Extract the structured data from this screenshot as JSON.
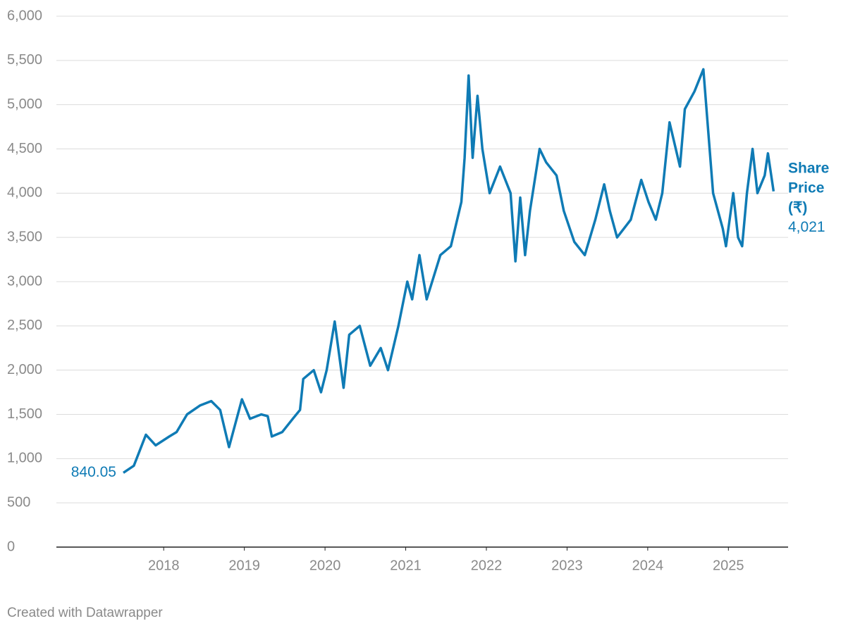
{
  "chart_data": {
    "type": "line",
    "x": [
      2017.5,
      2017.63,
      2017.78,
      2017.9,
      2018.07,
      2018.16,
      2018.29,
      2018.45,
      2018.59,
      2018.7,
      2018.81,
      2018.97,
      2019.07,
      2019.21,
      2019.29,
      2019.34,
      2019.47,
      2019.6,
      2019.69,
      2019.73,
      2019.86,
      2019.95,
      2020.02,
      2020.12,
      2020.23,
      2020.3,
      2020.43,
      2020.56,
      2020.69,
      2020.78,
      2020.91,
      2021.02,
      2021.08,
      2021.17,
      2021.26,
      2021.43,
      2021.56,
      2021.69,
      2021.73,
      2021.78,
      2021.83,
      2021.89,
      2021.95,
      2022.04,
      2022.17,
      2022.3,
      2022.36,
      2022.42,
      2022.48,
      2022.54,
      2022.66,
      2022.74,
      2022.87,
      2022.96,
      2023.09,
      2023.22,
      2023.35,
      2023.46,
      2023.53,
      2023.62,
      2023.79,
      2023.92,
      2024.01,
      2024.1,
      2024.18,
      2024.27,
      2024.4,
      2024.46,
      2024.58,
      2024.69,
      2024.75,
      2024.81,
      2024.93,
      2024.97,
      2025.06,
      2025.12,
      2025.17,
      2025.23,
      2025.3,
      2025.36,
      2025.45,
      2025.49,
      2025.56
    ],
    "series": [
      {
        "name": "Share Price (₹)",
        "color": "#0f7bb5",
        "values": [
          840.05,
          920,
          1270,
          1150,
          1250,
          1300,
          1500,
          1600,
          1650,
          1550,
          1130,
          1670,
          1450,
          1500,
          1480,
          1250,
          1300,
          1450,
          1550,
          1900,
          2000,
          1750,
          2000,
          2550,
          1800,
          2400,
          2500,
          2050,
          2250,
          2000,
          2500,
          3000,
          2800,
          3300,
          2800,
          3300,
          3400,
          3900,
          4400,
          5330,
          4400,
          5100,
          4500,
          4000,
          4300,
          4000,
          3230,
          3950,
          3300,
          3800,
          4500,
          4350,
          4200,
          3800,
          3450,
          3300,
          3700,
          4100,
          3800,
          3500,
          3700,
          4150,
          3900,
          3700,
          4000,
          4800,
          4300,
          4950,
          5150,
          5400,
          4700,
          4000,
          3600,
          3400,
          4000,
          3500,
          3400,
          4000,
          4500,
          4000,
          4200,
          4450,
          4021
        ],
        "value_labels": [
          "840.05",
          null,
          null,
          null,
          null,
          null,
          null,
          null,
          null,
          null,
          null,
          null,
          null,
          null,
          null,
          null,
          null,
          null,
          null,
          null,
          null,
          null,
          null,
          null,
          null,
          null,
          null,
          null,
          null,
          null,
          null,
          null,
          null,
          null,
          null,
          null,
          null,
          null,
          null,
          null,
          null,
          null,
          null,
          null,
          null,
          null,
          null,
          null,
          null,
          null,
          null,
          null,
          null,
          null,
          null,
          null,
          null,
          null,
          null,
          null,
          null,
          null,
          null,
          null,
          null,
          null,
          null,
          null,
          null,
          null,
          null,
          null,
          null,
          null,
          null,
          null,
          null,
          null,
          null,
          null,
          null,
          null,
          "4,021"
        ]
      }
    ],
    "xlim": [
      2016.67,
      2025.74
    ],
    "xticks": [
      2018,
      2019,
      2020,
      2021,
      2022,
      2023,
      2024,
      2025
    ],
    "ylim": [
      0,
      6000
    ],
    "yticks": [
      0,
      500,
      {
        "value": 1000,
        "label": "1,000"
      },
      {
        "value": 1500,
        "label": "1,500"
      },
      {
        "value": 2000,
        "label": "2,000"
      },
      {
        "value": 2500,
        "label": "2,500"
      },
      {
        "value": 3000,
        "label": "3,000"
      },
      {
        "value": 3500,
        "label": "3,500"
      },
      {
        "value": 4000,
        "label": "4,000"
      },
      {
        "value": 4500,
        "label": "4,500"
      },
      {
        "value": 5000,
        "label": "5,000"
      },
      {
        "value": 5500,
        "label": "5,500"
      },
      {
        "value": 6000,
        "label": "6,000"
      }
    ],
    "grid": true,
    "footer": "Created with Datawrapper"
  }
}
